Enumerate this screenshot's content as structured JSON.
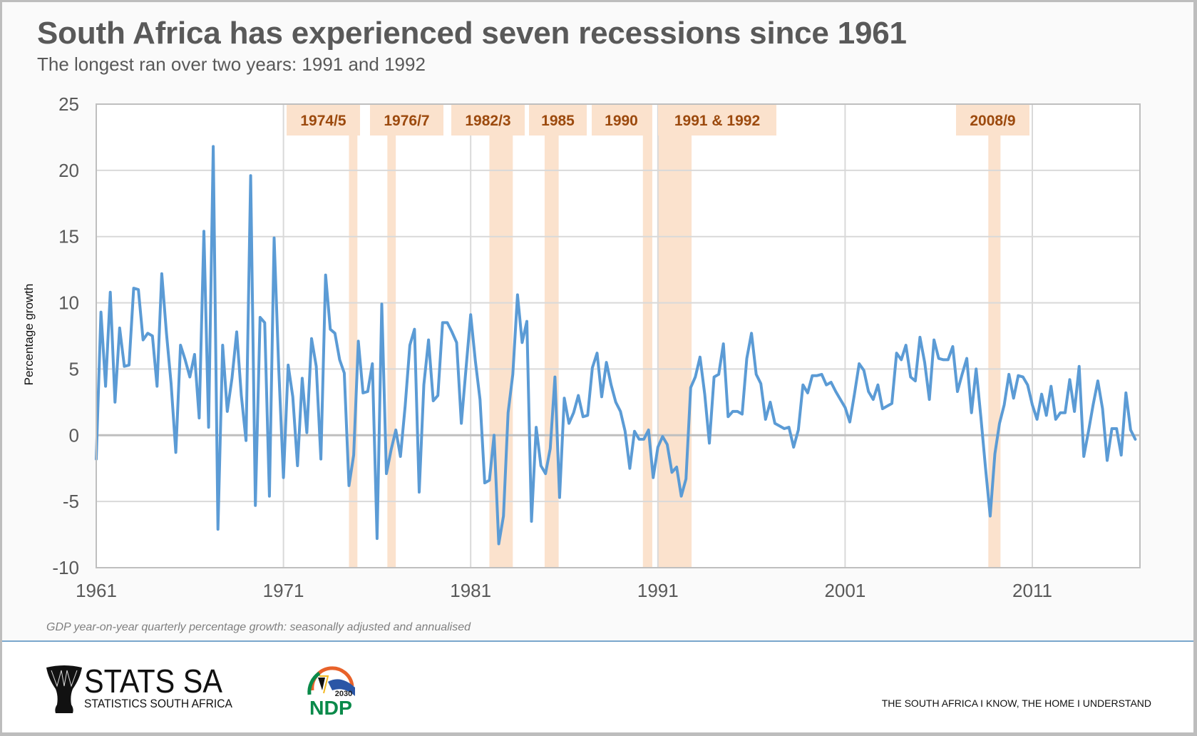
{
  "header": {
    "title": "South Africa has experienced seven recessions since 1961",
    "subtitle": "The longest ran over two years: 1991 and 1992"
  },
  "colors": {
    "line": "#5b9bd5",
    "band": "#fbe2cd",
    "band_label": "#9c4a0e",
    "title": "#595959",
    "grid": "#d9d9d9",
    "zero_line": "#bfbfbf"
  },
  "chart_data": {
    "type": "line",
    "title": "South Africa has experienced seven recessions since 1961",
    "subtitle": "The longest ran over two years: 1991 and 1992",
    "xlabel": "",
    "ylabel": "Percentage growth",
    "ylim": [
      -10,
      25
    ],
    "yticks": [
      25,
      20,
      15,
      10,
      5,
      0,
      -5,
      -10
    ],
    "ytick_labels": [
      "25",
      "20",
      "15",
      "10",
      "5",
      "0",
      "-5",
      "-10"
    ],
    "xlim": [
      1961,
      2016.75
    ],
    "xticks": [
      1961,
      1971,
      1981,
      1991,
      2001,
      2011
    ],
    "xtick_labels": [
      "1961",
      "1971",
      "1981",
      "1991",
      "2001",
      "2011"
    ],
    "grid": true,
    "x_start": 1961,
    "x_step": 0.25,
    "series": [
      {
        "name": "GDP growth",
        "values": [
          -1.8,
          9.3,
          3.7,
          10.8,
          2.5,
          8.1,
          5.2,
          5.3,
          11.1,
          11.0,
          7.2,
          7.7,
          7.5,
          3.7,
          12.2,
          7.7,
          3.9,
          -1.3,
          6.8,
          5.7,
          4.4,
          6.1,
          1.3,
          15.4,
          0.6,
          21.8,
          -7.1,
          6.8,
          1.8,
          4.3,
          7.8,
          3.0,
          -0.4,
          19.6,
          -5.3,
          8.9,
          8.5,
          -4.6,
          14.9,
          5.0,
          -3.2,
          5.3,
          2.9,
          -2.3,
          4.3,
          0.2,
          7.3,
          5.2,
          -1.8,
          12.1,
          8.0,
          7.7,
          5.7,
          4.7,
          -3.8,
          -1.5,
          7.1,
          3.2,
          3.3,
          5.4,
          -7.8,
          9.9,
          -2.9,
          -1.1,
          0.4,
          -1.6,
          2.2,
          6.8,
          8.0,
          -4.3,
          3.8,
          7.2,
          2.6,
          3.0,
          8.5,
          8.5,
          7.8,
          7.0,
          0.9,
          5.0,
          9.1,
          5.6,
          2.7,
          -3.6,
          -3.4,
          0.0,
          -8.2,
          -6.1,
          1.7,
          4.6,
          10.6,
          7.0,
          8.6,
          -6.5,
          0.6,
          -2.3,
          -2.9,
          -1.0,
          4.4,
          -4.7,
          2.8,
          0.9,
          1.7,
          3.0,
          1.4,
          1.5,
          5.1,
          6.2,
          2.9,
          5.5,
          3.8,
          2.5,
          1.8,
          0.3,
          -2.5,
          0.3,
          -0.3,
          -0.3,
          0.4,
          -3.2,
          -0.9,
          -0.1,
          -0.7,
          -2.8,
          -2.4,
          -4.6,
          -3.3,
          3.6,
          4.4,
          5.9,
          3.1,
          -0.6,
          4.4,
          4.6,
          6.9,
          1.4,
          1.8,
          1.8,
          1.6,
          5.8,
          7.7,
          4.6,
          3.9,
          1.2,
          2.5,
          0.9,
          0.7,
          0.5,
          0.6,
          -0.9,
          0.4,
          3.8,
          3.2,
          4.5,
          4.5,
          4.6,
          3.8,
          4.0,
          3.3,
          2.7,
          2.1,
          1.0,
          3.1,
          5.4,
          4.9,
          3.3,
          2.7,
          3.8,
          2.0,
          2.2,
          2.4,
          6.2,
          5.7,
          6.8,
          4.4,
          4.1,
          7.4,
          5.5,
          2.7,
          7.2,
          5.8,
          5.7,
          5.7,
          6.7,
          3.3,
          4.6,
          5.8,
          1.7,
          5.0,
          1.4,
          -2.5,
          -6.1,
          -1.4,
          0.9,
          2.3,
          4.6,
          2.8,
          4.5,
          4.4,
          3.8,
          2.3,
          1.2,
          3.1,
          1.5,
          3.7,
          1.2,
          1.7,
          1.7,
          4.2,
          1.8,
          5.2,
          -1.6,
          0.3,
          2.3,
          4.1,
          2.0,
          -1.9,
          0.5,
          0.5,
          -1.5,
          3.2,
          0.4,
          -0.3
        ]
      }
    ],
    "recessions": [
      {
        "label": "1974/5",
        "start": 1974.5,
        "end": 1974.95
      },
      {
        "label": "1976/7",
        "start": 1976.55,
        "end": 1977.0
      },
      {
        "label": "1982/3",
        "start": 1982.0,
        "end": 1983.25
      },
      {
        "label": "1985",
        "start": 1984.95,
        "end": 1985.7
      },
      {
        "label": "1990",
        "start": 1990.2,
        "end": 1990.7
      },
      {
        "label": "1991 & 1992",
        "start": 1991.0,
        "end": 1992.8
      },
      {
        "label": "2008/9",
        "start": 2008.65,
        "end": 2009.3
      }
    ]
  },
  "footnote": "GDP year-on-year quarterly percentage growth: seasonally adjusted and annualised",
  "footer": {
    "org_name": "STATS SA",
    "org_full_name": "STATISTICS SOUTH AFRICA",
    "ndp_year": "2030",
    "ndp_text": "NDP",
    "tagline": "THE SOUTH AFRICA I KNOW, THE HOME I UNDERSTAND"
  }
}
